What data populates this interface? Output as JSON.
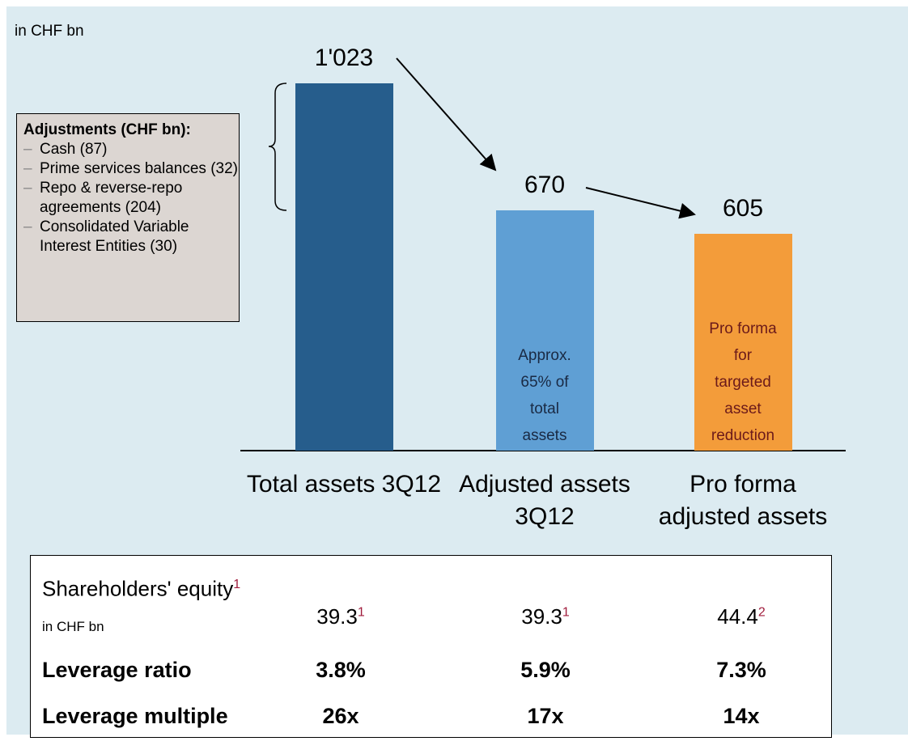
{
  "chart_data": {
    "type": "bar",
    "unit_label": "in CHF bn",
    "categories": [
      "Total assets 3Q12",
      "Adjusted assets 3Q12",
      "Pro forma adjusted assets"
    ],
    "values": [
      1023,
      670,
      605
    ],
    "value_labels": [
      "1'023",
      "670",
      "605"
    ],
    "colors": [
      "#265d8c",
      "#5f9fd4",
      "#f39c3a"
    ],
    "bar_notes": [
      null,
      "Approx. 65% of total assets",
      "Pro forma for targeted asset reduction"
    ],
    "adjustments": {
      "title": "Adjustments (CHF bn):",
      "items": [
        "Cash (87)",
        "Prime services balances (32)",
        "Repo & reverse-repo agreements (204)",
        "Consolidated Variable Interest Entities (30)"
      ]
    }
  },
  "table": {
    "rows": [
      {
        "label": "Shareholders' equity",
        "label_note": "1",
        "label_unit": "in CHF bn",
        "cells": [
          {
            "text": "39.3",
            "note": "1"
          },
          {
            "text": "39.3",
            "note": "1"
          },
          {
            "text": "44.4",
            "note": "2"
          }
        ]
      },
      {
        "label": "Leverage ratio",
        "cells": [
          {
            "text": "3.8%"
          },
          {
            "text": "5.9%"
          },
          {
            "text": "7.3%"
          }
        ]
      },
      {
        "label": "Leverage multiple",
        "cells": [
          {
            "text": "26x"
          },
          {
            "text": "17x"
          },
          {
            "text": "14x"
          }
        ]
      }
    ]
  }
}
